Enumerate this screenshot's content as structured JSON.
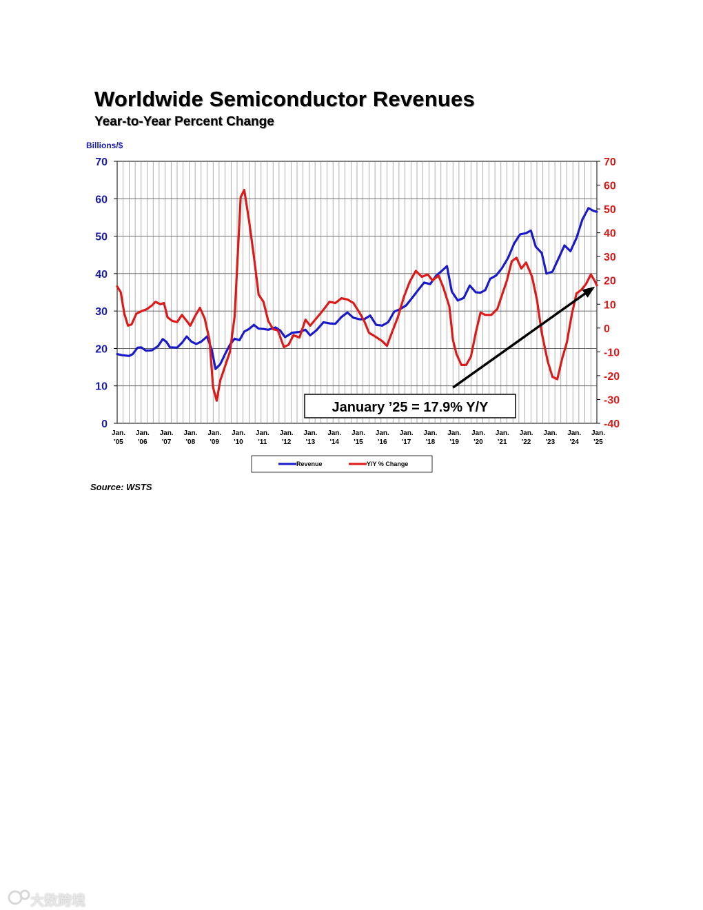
{
  "header": {
    "title": "Worldwide Semiconductor Revenues",
    "subtitle": "Year-to-Year Percent Change",
    "left_axis_units": "Billions/$"
  },
  "footer": {
    "source": "Source: WSTS"
  },
  "watermark": {
    "text": "大数跨境"
  },
  "colors": {
    "revenue": "#1a1ac8",
    "yoy": "#dd1a1a",
    "left_axis_text": "#1a1aa8",
    "right_axis_text": "#d81818",
    "grid": "#000000"
  },
  "chart_data": {
    "type": "line",
    "title": "Worldwide Semiconductor Revenues",
    "subtitle": "Year-to-Year Percent Change",
    "x_tick_labels": [
      {
        "top": "Jan.",
        "bottom": "'05"
      },
      {
        "top": "Jan.",
        "bottom": "'06"
      },
      {
        "top": "Jan.",
        "bottom": "'07"
      },
      {
        "top": "Jan.",
        "bottom": "'08"
      },
      {
        "top": "Jan.",
        "bottom": "'09"
      },
      {
        "top": "Jan.",
        "bottom": "'10"
      },
      {
        "top": "Jan.",
        "bottom": "'11"
      },
      {
        "top": "Jan.",
        "bottom": "'12"
      },
      {
        "top": "Jan.",
        "bottom": "'13"
      },
      {
        "top": "Jan.",
        "bottom": "'14"
      },
      {
        "top": "Jan.",
        "bottom": "'15"
      },
      {
        "top": "Jan.",
        "bottom": "'16"
      },
      {
        "top": "Jan.",
        "bottom": "'17"
      },
      {
        "top": "Jan.",
        "bottom": "'18"
      },
      {
        "top": "Jan.",
        "bottom": "'19"
      },
      {
        "top": "Jan.",
        "bottom": "'20"
      },
      {
        "top": "Jan.",
        "bottom": "'21"
      },
      {
        "top": "Jan.",
        "bottom": "'22"
      },
      {
        "top": "Jan.",
        "bottom": "'23"
      },
      {
        "top": "Jan.",
        "bottom": "'24"
      },
      {
        "top": "Jan.",
        "bottom": "'25"
      }
    ],
    "xlim": [
      2005.0,
      2025.0
    ],
    "y_left": {
      "label": "Billions/$",
      "ylim": [
        0,
        70
      ],
      "ticks": [
        0,
        10,
        20,
        30,
        40,
        50,
        60,
        70
      ]
    },
    "y_right": {
      "label": "",
      "ylim": [
        -40,
        70
      ],
      "ticks": [
        -40,
        -30,
        -20,
        -10,
        0,
        10,
        20,
        30,
        40,
        50,
        60,
        70
      ]
    },
    "grid": true,
    "legend": {
      "placement": "bottom-center"
    },
    "annotation": {
      "text": "January ’25 = 17.9% Y/Y",
      "arrow_from": [
        2019.0,
        -25
      ],
      "arrow_to": [
        2025.0,
        17.9
      ]
    },
    "series": [
      {
        "name": "Revenue",
        "axis": "left",
        "points": [
          [
            2005.0,
            18.5
          ],
          [
            2005.2,
            18.2
          ],
          [
            2005.5,
            18.0
          ],
          [
            2005.65,
            18.5
          ],
          [
            2005.85,
            20.2
          ],
          [
            2006.0,
            20.3
          ],
          [
            2006.2,
            19.4
          ],
          [
            2006.45,
            19.5
          ],
          [
            2006.7,
            20.6
          ],
          [
            2006.9,
            22.5
          ],
          [
            2007.05,
            21.8
          ],
          [
            2007.2,
            20.3
          ],
          [
            2007.5,
            20.2
          ],
          [
            2007.7,
            21.5
          ],
          [
            2007.9,
            23.2
          ],
          [
            2008.1,
            21.8
          ],
          [
            2008.3,
            21.2
          ],
          [
            2008.5,
            21.8
          ],
          [
            2008.75,
            23.2
          ],
          [
            2008.95,
            19.5
          ],
          [
            2009.1,
            14.5
          ],
          [
            2009.3,
            15.8
          ],
          [
            2009.5,
            18.5
          ],
          [
            2009.7,
            21.0
          ],
          [
            2009.9,
            22.6
          ],
          [
            2010.1,
            22.2
          ],
          [
            2010.3,
            24.5
          ],
          [
            2010.5,
            25.2
          ],
          [
            2010.7,
            26.3
          ],
          [
            2010.9,
            25.3
          ],
          [
            2011.1,
            25.2
          ],
          [
            2011.3,
            25.0
          ],
          [
            2011.6,
            25.6
          ],
          [
            2011.8,
            24.8
          ],
          [
            2012.0,
            23.0
          ],
          [
            2012.3,
            24.2
          ],
          [
            2012.6,
            24.4
          ],
          [
            2012.85,
            25.0
          ],
          [
            2013.05,
            23.5
          ],
          [
            2013.3,
            24.8
          ],
          [
            2013.6,
            27.0
          ],
          [
            2013.85,
            26.7
          ],
          [
            2014.1,
            26.6
          ],
          [
            2014.35,
            28.4
          ],
          [
            2014.6,
            29.6
          ],
          [
            2014.85,
            28.2
          ],
          [
            2015.1,
            27.8
          ],
          [
            2015.3,
            27.8
          ],
          [
            2015.55,
            28.8
          ],
          [
            2015.8,
            26.3
          ],
          [
            2016.05,
            26.1
          ],
          [
            2016.3,
            27.0
          ],
          [
            2016.55,
            29.8
          ],
          [
            2016.8,
            30.5
          ],
          [
            2017.05,
            31.5
          ],
          [
            2017.3,
            33.5
          ],
          [
            2017.55,
            35.6
          ],
          [
            2017.8,
            37.6
          ],
          [
            2018.05,
            37.2
          ],
          [
            2018.3,
            39.4
          ],
          [
            2018.55,
            40.8
          ],
          [
            2018.75,
            42.0
          ],
          [
            2018.95,
            35.2
          ],
          [
            2019.2,
            32.8
          ],
          [
            2019.45,
            33.5
          ],
          [
            2019.7,
            36.8
          ],
          [
            2019.95,
            35.0
          ],
          [
            2020.15,
            34.9
          ],
          [
            2020.35,
            35.6
          ],
          [
            2020.55,
            38.6
          ],
          [
            2020.8,
            39.5
          ],
          [
            2021.05,
            41.5
          ],
          [
            2021.3,
            44.2
          ],
          [
            2021.55,
            48.0
          ],
          [
            2021.8,
            50.5
          ],
          [
            2022.05,
            50.8
          ],
          [
            2022.25,
            51.5
          ],
          [
            2022.45,
            47.2
          ],
          [
            2022.7,
            45.5
          ],
          [
            2022.9,
            40.0
          ],
          [
            2023.15,
            40.5
          ],
          [
            2023.4,
            44.0
          ],
          [
            2023.65,
            47.5
          ],
          [
            2023.9,
            46.0
          ],
          [
            2024.15,
            49.5
          ],
          [
            2024.4,
            54.5
          ],
          [
            2024.65,
            57.5
          ],
          [
            2024.85,
            56.8
          ],
          [
            2025.0,
            56.5
          ]
        ]
      },
      {
        "name": "Y/Y % Change",
        "axis": "right",
        "points": [
          [
            2005.0,
            17.5
          ],
          [
            2005.15,
            15.0
          ],
          [
            2005.3,
            6.0
          ],
          [
            2005.45,
            1.0
          ],
          [
            2005.6,
            1.5
          ],
          [
            2005.8,
            6.0
          ],
          [
            2006.0,
            7.0
          ],
          [
            2006.25,
            8.0
          ],
          [
            2006.45,
            9.5
          ],
          [
            2006.6,
            11.0
          ],
          [
            2006.8,
            10.0
          ],
          [
            2006.95,
            10.5
          ],
          [
            2007.1,
            4.5
          ],
          [
            2007.3,
            3.0
          ],
          [
            2007.5,
            2.5
          ],
          [
            2007.7,
            5.5
          ],
          [
            2007.9,
            3.0
          ],
          [
            2008.05,
            1.0
          ],
          [
            2008.25,
            5.0
          ],
          [
            2008.45,
            8.5
          ],
          [
            2008.65,
            4.0
          ],
          [
            2008.85,
            -5.0
          ],
          [
            2009.0,
            -25.0
          ],
          [
            2009.15,
            -30.5
          ],
          [
            2009.3,
            -22.0
          ],
          [
            2009.5,
            -16.0
          ],
          [
            2009.7,
            -10.0
          ],
          [
            2009.9,
            5.0
          ],
          [
            2010.05,
            35.0
          ],
          [
            2010.15,
            55.0
          ],
          [
            2010.3,
            58.0
          ],
          [
            2010.5,
            45.0
          ],
          [
            2010.7,
            30.0
          ],
          [
            2010.9,
            14.0
          ],
          [
            2011.1,
            11.0
          ],
          [
            2011.3,
            3.0
          ],
          [
            2011.5,
            -0.5
          ],
          [
            2011.7,
            -1.0
          ],
          [
            2011.95,
            -8.0
          ],
          [
            2012.15,
            -7.0
          ],
          [
            2012.35,
            -3.0
          ],
          [
            2012.6,
            -4.0
          ],
          [
            2012.85,
            3.5
          ],
          [
            2013.05,
            1.0
          ],
          [
            2013.3,
            4.0
          ],
          [
            2013.55,
            7.0
          ],
          [
            2013.85,
            11.0
          ],
          [
            2014.1,
            10.5
          ],
          [
            2014.35,
            12.5
          ],
          [
            2014.6,
            12.0
          ],
          [
            2014.85,
            10.5
          ],
          [
            2015.1,
            6.5
          ],
          [
            2015.3,
            3.0
          ],
          [
            2015.5,
            -2.0
          ],
          [
            2015.75,
            -3.5
          ],
          [
            2016.05,
            -5.5
          ],
          [
            2016.25,
            -7.5
          ],
          [
            2016.45,
            -2.0
          ],
          [
            2016.7,
            4.5
          ],
          [
            2016.95,
            13.0
          ],
          [
            2017.2,
            19.5
          ],
          [
            2017.45,
            24.0
          ],
          [
            2017.7,
            21.5
          ],
          [
            2017.95,
            22.5
          ],
          [
            2018.15,
            20.0
          ],
          [
            2018.4,
            22.0
          ],
          [
            2018.6,
            17.0
          ],
          [
            2018.85,
            9.0
          ],
          [
            2019.0,
            -5.0
          ],
          [
            2019.15,
            -11.0
          ],
          [
            2019.35,
            -15.5
          ],
          [
            2019.55,
            -15.5
          ],
          [
            2019.75,
            -12.0
          ],
          [
            2019.95,
            -2.0
          ],
          [
            2020.15,
            6.5
          ],
          [
            2020.35,
            5.5
          ],
          [
            2020.6,
            5.5
          ],
          [
            2020.85,
            8.0
          ],
          [
            2021.05,
            14.0
          ],
          [
            2021.25,
            20.0
          ],
          [
            2021.45,
            28.0
          ],
          [
            2021.65,
            29.5
          ],
          [
            2021.85,
            25.0
          ],
          [
            2022.05,
            27.5
          ],
          [
            2022.3,
            21.5
          ],
          [
            2022.5,
            12.0
          ],
          [
            2022.7,
            -2.0
          ],
          [
            2022.95,
            -14.0
          ],
          [
            2023.15,
            -20.5
          ],
          [
            2023.35,
            -21.5
          ],
          [
            2023.55,
            -13.0
          ],
          [
            2023.75,
            -6.0
          ],
          [
            2023.95,
            5.5
          ],
          [
            2024.15,
            14.5
          ],
          [
            2024.35,
            16.0
          ],
          [
            2024.55,
            18.5
          ],
          [
            2024.75,
            22.5
          ],
          [
            2024.9,
            20.0
          ],
          [
            2025.0,
            17.9
          ]
        ]
      }
    ]
  }
}
